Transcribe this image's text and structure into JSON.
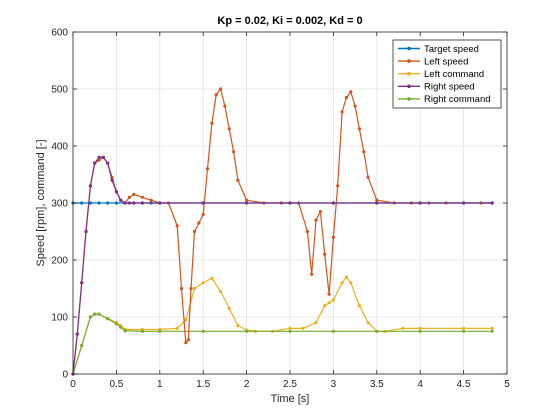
{
  "chart_data": {
    "type": "line",
    "title": "Kp = 0.02, Ki = 0.002, Kd = 0",
    "xlabel": "Time [s]",
    "ylabel": "Speed [rpm], command [-]",
    "xlim": [
      0,
      5
    ],
    "ylim": [
      0,
      600
    ],
    "xticks": [
      0,
      0.5,
      1,
      1.5,
      2,
      2.5,
      3,
      3.5,
      4,
      4.5,
      5
    ],
    "xtick_labels": [
      "0",
      "0.5",
      "1",
      "1.5",
      "2",
      "2.5",
      "3",
      "3.5",
      "4",
      "4.5",
      "5"
    ],
    "yticks": [
      0,
      100,
      200,
      300,
      400,
      500,
      600
    ],
    "ytick_labels": [
      "0",
      "100",
      "200",
      "300",
      "400",
      "500",
      "600"
    ],
    "grid": true,
    "legend_position": "top-right",
    "series": [
      {
        "name": "Target speed",
        "color": "#0072BD",
        "marker": "dot",
        "x": [
          0,
          0.1,
          0.2,
          0.3,
          0.4,
          0.5,
          0.6,
          0.7,
          0.8,
          0.9,
          1.0,
          1.5,
          2.0,
          2.5,
          3.0,
          3.5,
          4.0,
          4.5,
          4.83
        ],
        "y": [
          300,
          300,
          300,
          300,
          300,
          300,
          300,
          300,
          300,
          300,
          300,
          300,
          300,
          300,
          300,
          300,
          300,
          300,
          300
        ]
      },
      {
        "name": "Left speed",
        "color": "#D95319",
        "marker": "dot",
        "x": [
          0,
          0.05,
          0.1,
          0.15,
          0.2,
          0.25,
          0.3,
          0.35,
          0.4,
          0.45,
          0.5,
          0.55,
          0.6,
          0.65,
          0.7,
          0.8,
          0.9,
          1.0,
          1.1,
          1.2,
          1.25,
          1.3,
          1.33,
          1.36,
          1.4,
          1.45,
          1.5,
          1.55,
          1.6,
          1.65,
          1.7,
          1.75,
          1.8,
          1.85,
          1.9,
          2.0,
          2.2,
          2.4,
          2.6,
          2.7,
          2.75,
          2.8,
          2.85,
          2.9,
          2.95,
          3.0,
          3.05,
          3.1,
          3.15,
          3.2,
          3.25,
          3.3,
          3.35,
          3.4,
          3.5,
          3.7,
          3.9,
          4.1,
          4.3,
          4.5,
          4.7,
          4.83
        ],
        "y": [
          0,
          70,
          160,
          250,
          330,
          370,
          375,
          380,
          370,
          345,
          320,
          305,
          300,
          310,
          315,
          310,
          305,
          300,
          300,
          260,
          150,
          55,
          60,
          150,
          250,
          265,
          280,
          360,
          440,
          490,
          500,
          470,
          430,
          390,
          340,
          305,
          300,
          300,
          300,
          250,
          175,
          270,
          285,
          210,
          140,
          240,
          330,
          460,
          485,
          495,
          470,
          430,
          390,
          345,
          305,
          300,
          300,
          300,
          300,
          300,
          300,
          300
        ]
      },
      {
        "name": "Left command",
        "color": "#EDB120",
        "marker": "dot",
        "x": [
          0,
          0.1,
          0.2,
          0.25,
          0.3,
          0.4,
          0.5,
          0.55,
          0.6,
          0.8,
          1.0,
          1.2,
          1.3,
          1.4,
          1.5,
          1.6,
          1.7,
          1.8,
          1.9,
          2.0,
          2.1,
          2.3,
          2.5,
          2.65,
          2.8,
          2.9,
          2.95,
          3.0,
          3.1,
          3.15,
          3.2,
          3.3,
          3.4,
          3.5,
          3.6,
          3.8,
          4.0,
          4.5,
          4.83
        ],
        "y": [
          0,
          50,
          100,
          105,
          105,
          97,
          90,
          85,
          78,
          78,
          78,
          80,
          95,
          150,
          160,
          168,
          145,
          115,
          85,
          77,
          75,
          75,
          80,
          80,
          90,
          120,
          125,
          130,
          160,
          170,
          160,
          120,
          90,
          75,
          75,
          80,
          80,
          80,
          80
        ]
      },
      {
        "name": "Right speed",
        "color": "#7E2F8E",
        "marker": "dot",
        "x": [
          0,
          0.05,
          0.1,
          0.15,
          0.2,
          0.25,
          0.3,
          0.35,
          0.4,
          0.45,
          0.5,
          0.55,
          0.6,
          0.65,
          0.7,
          0.8,
          1.0,
          1.5,
          2.0,
          2.5,
          3.0,
          3.5,
          4.0,
          4.5,
          4.83
        ],
        "y": [
          0,
          70,
          160,
          250,
          330,
          370,
          380,
          380,
          370,
          340,
          320,
          305,
          300,
          300,
          300,
          300,
          300,
          300,
          300,
          300,
          300,
          300,
          300,
          300,
          300
        ]
      },
      {
        "name": "Right command",
        "color": "#77AC30",
        "marker": "dot",
        "x": [
          0,
          0.1,
          0.2,
          0.25,
          0.3,
          0.4,
          0.5,
          0.55,
          0.6,
          0.8,
          1.0,
          1.5,
          2.0,
          2.5,
          3.0,
          3.5,
          4.0,
          4.5,
          4.83
        ],
        "y": [
          0,
          50,
          100,
          105,
          105,
          97,
          88,
          82,
          76,
          75,
          75,
          75,
          75,
          75,
          75,
          75,
          75,
          75,
          75
        ]
      }
    ]
  }
}
